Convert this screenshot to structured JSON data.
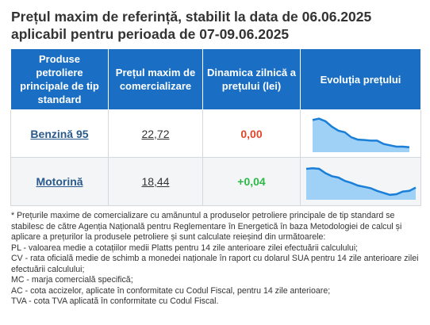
{
  "title_line1": "Prețul maxim de referință, stabilit la data de 06.06.2025",
  "title_line2": "aplicabil pentru perioada de 07-09.06.2025",
  "table": {
    "headers": [
      "Produse petroliere principale de tip standard",
      "Prețul maxim de comercializare",
      "Dinamica zilnică a prețului (lei)",
      "Evoluția prețului"
    ],
    "rows": [
      {
        "product": "Benzină 95",
        "price": "22,72",
        "dynamic": "0,00",
        "trend": [
          0.92,
          0.96,
          0.88,
          0.72,
          0.6,
          0.55,
          0.4,
          0.33,
          0.32,
          0.3,
          0.3,
          0.2,
          0.16,
          0.12,
          0.12,
          0.1
        ]
      },
      {
        "product": "Motorină",
        "price": "18,44",
        "dynamic": "+0,04",
        "trend": [
          0.88,
          0.9,
          0.88,
          0.75,
          0.66,
          0.62,
          0.52,
          0.46,
          0.38,
          0.34,
          0.3,
          0.22,
          0.16,
          0.1,
          0.12,
          0.2,
          0.22,
          0.32
        ]
      }
    ],
    "colors": {
      "header_bg": "#1a6fc4",
      "trend_line": "#1a7fd8",
      "trend_fill": "#9fd0f5",
      "dyn_zero": "#e0472a",
      "dyn_up": "#2fb84a"
    }
  },
  "notes": [
    "* Prețurile maxime de comercializare cu amănuntul a produselor petroliere principale de tip standard se stabilesc de către Agenția Națională pentru Reglementare în Energetică în baza Metodologiei de calcul și aplicare a prețurilor la produsele petroliere și sunt calculate reieșind din următoarele:",
    "PL - valoarea medie a cotațiilor medii Platts pentru 14 zile anterioare zilei efectuării calculului;",
    "CV - rata oficială medie de schimb a monedei naționale în raport cu dolarul SUA pentru 14 zile anterioare zilei efectuării calculului;",
    "MC - marja comercială specifică;",
    "AC - cota accizelor, aplicate în conformitate cu Codul Fiscal, pentru 14 zile anterioare;",
    "TVA - cota TVA aplicată în conformitate cu Codul Fiscal."
  ]
}
